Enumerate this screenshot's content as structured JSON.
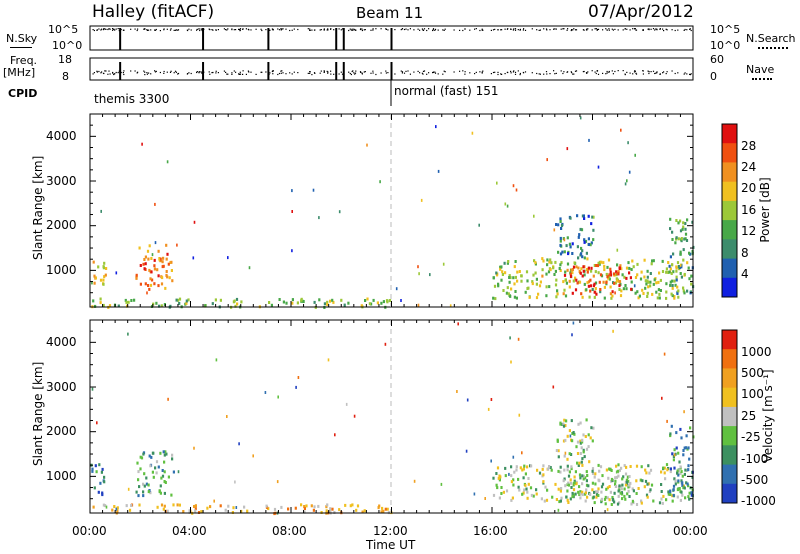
{
  "header": {
    "radar": "Halley (fitACF)",
    "beam": "Beam 11",
    "date": "07/Apr/2012"
  },
  "strips": {
    "nsky_label": "N.Sky",
    "nsky_ticks": [
      "10^5",
      "10^0"
    ],
    "nsearch_label": "N.Search",
    "nsearch_ticks": [
      "10^5",
      "10^0"
    ],
    "freq_label_1": "Freq.",
    "freq_label_2": "[MHz]",
    "freq_ticks": [
      "18",
      "8"
    ],
    "nave_label": "Nave",
    "nave_ticks": [
      "60",
      "0"
    ],
    "cpid_label": "CPID",
    "cpid_segments": [
      {
        "label": "themis 3300",
        "start_hour": 0
      },
      {
        "label": "normal (fast) 151",
        "start_hour": 12
      }
    ]
  },
  "axes": {
    "ylabel": "Slant Range [km]",
    "xlabel": "Time UT",
    "x_ticks": [
      "00:00",
      "04:00",
      "08:00",
      "12:00",
      "16:00",
      "20:00",
      "00:00"
    ],
    "y_ticks": [
      "1000",
      "2000",
      "3000",
      "4000"
    ],
    "xlim_hours": [
      0,
      24
    ],
    "ylim_km": [
      180,
      4500
    ]
  },
  "colorbars": {
    "power": {
      "label": "Power [dB]",
      "ticks": [
        "4",
        "8",
        "12",
        "16",
        "20",
        "24",
        "28"
      ],
      "colors": [
        "#1020e0",
        "#2060b0",
        "#3c8c6c",
        "#48a848",
        "#9cc838",
        "#f0c020",
        "#f09020",
        "#f05010",
        "#e01010"
      ]
    },
    "velocity": {
      "label": "Velocity [m s⁻¹]",
      "ticks": [
        "1000",
        "500",
        "100",
        "25",
        "-25",
        "-100",
        "-500",
        "-1000"
      ],
      "colors": [
        "#2040c0",
        "#3070b0",
        "#3c9060",
        "#60c040",
        "#c0c0c0",
        "#f0c020",
        "#f0a020",
        "#f07010",
        "#e02010"
      ]
    }
  },
  "chart_data": [
    {
      "type": "heatmap",
      "name": "power",
      "xlabel": "Time UT",
      "ylabel": "Slant Range [km]",
      "xlim": [
        0,
        24
      ],
      "ylim": [
        180,
        4500
      ],
      "colorbar_label": "Power [dB]",
      "blobs": [
        {
          "t0": 0.0,
          "t1": 0.6,
          "r0": 600,
          "r1": 1300,
          "level": 0.6
        },
        {
          "t0": 1.8,
          "t1": 3.3,
          "r0": 600,
          "r1": 1600,
          "level": 0.75
        },
        {
          "t0": 0.0,
          "t1": 12.0,
          "r0": 200,
          "r1": 400,
          "level": 0.45
        },
        {
          "t0": 16.0,
          "t1": 23.8,
          "r0": 400,
          "r1": 1300,
          "level": 0.5
        },
        {
          "t0": 18.8,
          "t1": 21.5,
          "r0": 500,
          "r1": 1150,
          "level": 0.85
        },
        {
          "t0": 18.5,
          "t1": 20.0,
          "r0": 1300,
          "r1": 2300,
          "level": 0.25
        },
        {
          "t0": 23.0,
          "t1": 24.0,
          "r0": 500,
          "r1": 2200,
          "level": 0.35
        }
      ]
    },
    {
      "type": "heatmap",
      "name": "velocity",
      "xlabel": "Time UT",
      "ylabel": "Slant Range [km]",
      "xlim": [
        0,
        24
      ],
      "ylim": [
        180,
        4500
      ],
      "colorbar_label": "Velocity [m s⁻¹]",
      "blobs": [
        {
          "t0": 0.0,
          "t1": 0.6,
          "r0": 600,
          "r1": 1300,
          "level": 0.2
        },
        {
          "t0": 1.8,
          "t1": 3.3,
          "r0": 600,
          "r1": 1600,
          "level": 0.3
        },
        {
          "t0": 0.0,
          "t1": 12.0,
          "r0": 200,
          "r1": 400,
          "level": 0.65
        },
        {
          "t0": 16.0,
          "t1": 23.8,
          "r0": 400,
          "r1": 1300,
          "level": 0.45
        },
        {
          "t0": 18.8,
          "t1": 21.5,
          "r0": 500,
          "r1": 1150,
          "level": 0.4
        },
        {
          "t0": 18.5,
          "t1": 20.0,
          "r0": 1300,
          "r1": 2300,
          "level": 0.45
        },
        {
          "t0": 23.0,
          "t1": 24.0,
          "r0": 500,
          "r1": 2200,
          "level": 0.25
        }
      ]
    }
  ]
}
